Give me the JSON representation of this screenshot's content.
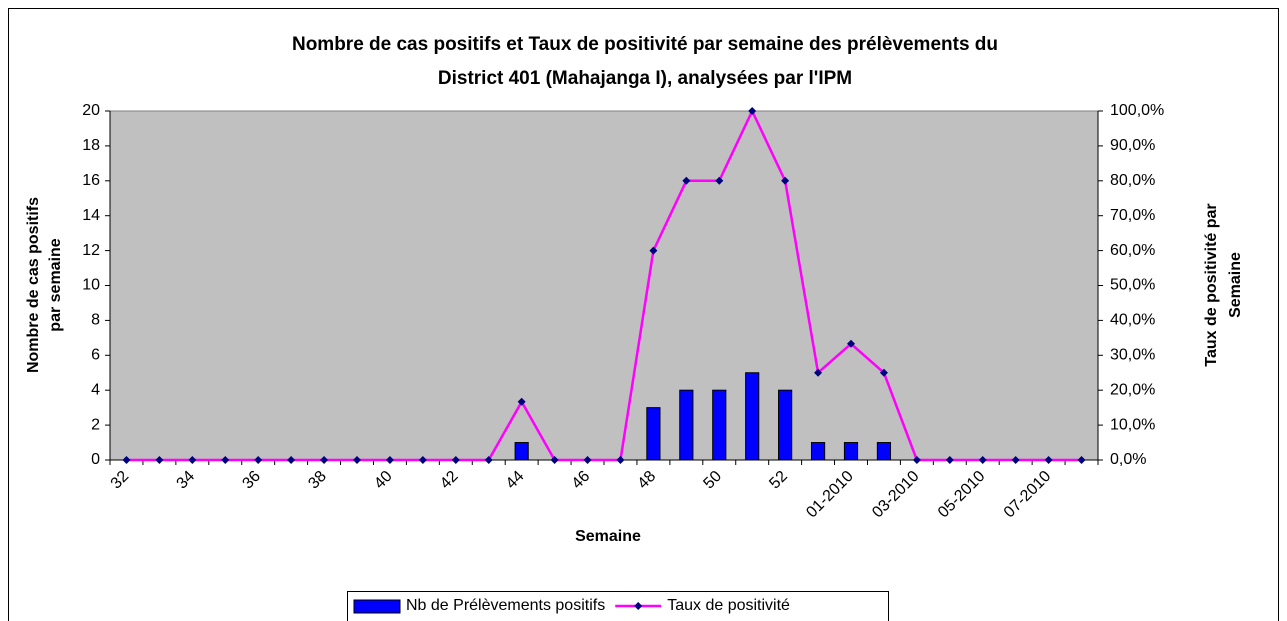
{
  "chart_data": {
    "type": "bar_line",
    "title": [
      "Nombre de cas positifs et Taux de positivité par semaine des prélèvements du",
      "District 401 (Mahajanga I), analysées par l'IPM"
    ],
    "x_label": "Semaine",
    "y_label": [
      "Nombre de cas positifs",
      "par semaine"
    ],
    "y2_label": [
      "Taux de positivité par",
      "Semaine"
    ],
    "categories": [
      "32",
      null,
      "34",
      null,
      "36",
      null,
      "38",
      null,
      "40",
      null,
      "42",
      null,
      "44",
      null,
      "46",
      null,
      "48",
      null,
      "50",
      null,
      "52",
      null,
      "01-2010",
      null,
      "03-2010",
      null,
      "05-2010",
      null,
      "07-2010",
      null
    ],
    "series": [
      {
        "name": "Nb de Prélèvements positifs",
        "color": "#0000ff",
        "kind": "bar",
        "values": [
          0,
          0,
          0,
          0,
          0,
          0,
          0,
          0,
          0,
          0,
          0,
          0,
          1,
          0,
          0,
          0,
          3,
          4,
          4,
          5,
          4,
          1,
          1,
          1,
          0,
          0,
          0,
          0,
          0,
          0
        ]
      },
      {
        "name": "Taux de positivité",
        "color": "#ff00ff",
        "marker_color": "#000080",
        "kind": "line",
        "axis": "y2",
        "values": [
          0,
          0,
          0,
          0,
          0,
          0,
          0,
          0,
          0,
          0,
          0,
          0,
          16.7,
          0,
          0,
          0,
          60,
          80,
          80,
          100,
          80,
          25,
          33.3,
          25,
          0,
          0,
          0,
          0,
          0,
          0
        ]
      }
    ],
    "ylim": [
      0,
      20
    ],
    "yticks": [
      0,
      2,
      4,
      6,
      8,
      10,
      12,
      14,
      16,
      18,
      20
    ],
    "y2lim": [
      0,
      100
    ],
    "y2ticks": [
      {
        "value": 0,
        "label": "0,0%"
      },
      {
        "value": 10,
        "label": "10,0%"
      },
      {
        "value": 20,
        "label": "20,0%"
      },
      {
        "value": 30,
        "label": "30,0%"
      },
      {
        "value": 40,
        "label": "40,0%"
      },
      {
        "value": 50,
        "label": "50,0%"
      },
      {
        "value": 60,
        "label": "60,0%"
      },
      {
        "value": 70,
        "label": "70,0%"
      },
      {
        "value": 80,
        "label": "80,0%"
      },
      {
        "value": 90,
        "label": "90,0%"
      },
      {
        "value": 100,
        "label": "100,0%"
      }
    ],
    "grid": false,
    "legend": "bottom",
    "plot_background": "#c0c0c0"
  }
}
